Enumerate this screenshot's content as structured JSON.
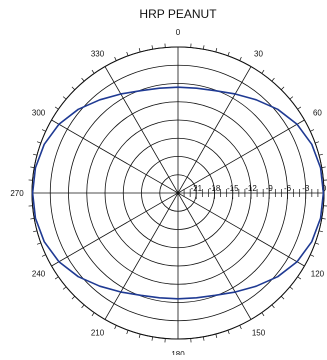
{
  "chart_data": {
    "type": "polar-line",
    "title": "HRP PEANUT",
    "angle_ticks": [
      {
        "deg": 0,
        "label": "0"
      },
      {
        "deg": 30,
        "label": "30"
      },
      {
        "deg": 60,
        "label": "60"
      },
      {
        "deg": 120,
        "label": "120"
      },
      {
        "deg": 150,
        "label": "150"
      },
      {
        "deg": 180,
        "label": "180"
      },
      {
        "deg": 210,
        "label": "210"
      },
      {
        "deg": 240,
        "label": "240"
      },
      {
        "deg": 270,
        "label": "270"
      },
      {
        "deg": 300,
        "label": "300"
      },
      {
        "deg": 330,
        "label": "330"
      }
    ],
    "radial_ticks": [
      {
        "db": -21,
        "label": "-21"
      },
      {
        "db": -18,
        "label": "-18"
      },
      {
        "db": -15,
        "label": "-15"
      },
      {
        "db": -12,
        "label": "-12"
      },
      {
        "db": -9,
        "label": "-9"
      },
      {
        "db": -6,
        "label": "-6"
      },
      {
        "db": -3,
        "label": "-3"
      },
      {
        "db": 0,
        "label": "0"
      }
    ],
    "outer_label": "9",
    "rlim": [
      -24,
      0
    ],
    "grid": true,
    "series": [
      {
        "color": "#1f3a93",
        "angles_deg": [
          0,
          10,
          20,
          30,
          40,
          50,
          60,
          70,
          80,
          90,
          100,
          110,
          120,
          130,
          140,
          150,
          160,
          170,
          180,
          190,
          200,
          210,
          220,
          230,
          240,
          250,
          260,
          270,
          280,
          290,
          300,
          310,
          320,
          330,
          340,
          350
        ],
        "values_db": [
          -6.6,
          -6.5,
          -6.1,
          -5.2,
          -4.0,
          -2.6,
          -1.4,
          -0.6,
          -0.2,
          -0.1,
          -0.2,
          -0.6,
          -1.4,
          -2.6,
          -4.0,
          -5.2,
          -6.1,
          -6.5,
          -6.6,
          -6.5,
          -6.1,
          -5.2,
          -4.0,
          -2.6,
          -1.4,
          -0.6,
          -0.2,
          -0.1,
          -0.2,
          -0.6,
          -1.4,
          -2.6,
          -4.0,
          -5.2,
          -6.1,
          -6.5
        ]
      }
    ]
  }
}
